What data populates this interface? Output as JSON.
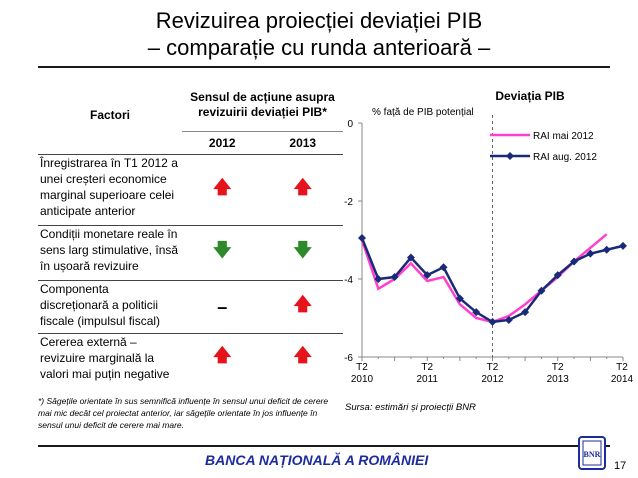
{
  "slide": {
    "title_line1": "Revizuirea proiecției deviației PIB",
    "title_line2": "– comparație cu runda anterioară –",
    "bank_name": "BANCA NAȚIONALĂ A ROMÂNIEI",
    "page_number": "17",
    "footnote": "*) Săgețile orientate în sus semnifică influențe în sensul unui deficit de cerere mai mic decât cel proiectat anterior, iar săgețile orientate în jos influențe în sensul unui deficit de cerere mai mare.",
    "source": "Sursa: estimări și proiecții BNR",
    "logo_text": "BNR"
  },
  "table": {
    "header_factor": "Factori",
    "header_sense": "Sensul de acțiune asupra revizuirii deviației PIB*",
    "year_2012": "2012",
    "year_2013": "2013",
    "rows": [
      {
        "label": "Înregistrarea în T1 2012 a unei creșteri economice marginal superioare celei anticipate anterior",
        "v2012": "up",
        "v2013": "up"
      },
      {
        "label": "Condiții monetare reale în sens larg stimulative, însă în ușoară revizuire",
        "v2012": "down",
        "v2013": "down"
      },
      {
        "label": "Componenta discreționară a politicii fiscale (impulsul fiscal)",
        "v2012": "neutral",
        "v2013": "up"
      },
      {
        "label": "Cererea externă – revizuire marginală la valori mai puțin negative",
        "v2012": "up",
        "v2013": "up"
      }
    ],
    "symbols": {
      "up": "🡅",
      "down": "🡇",
      "neutral": "–"
    },
    "colors": {
      "up": "#e5141c",
      "down": "#2d8a2a"
    }
  },
  "chart_data": {
    "type": "line",
    "title": "Deviația PIB",
    "ylabel": "% față de PIB potențial",
    "ylim": [
      -6,
      0
    ],
    "yticks": [
      0,
      -2,
      -4,
      -6
    ],
    "x_tick_labels": [
      "T2\n2010",
      "T2\n2011",
      "T2\n2012",
      "T2\n2013",
      "T2\n2014"
    ],
    "x_tick_index": [
      0,
      4,
      8,
      12,
      16
    ],
    "divider_index": 8,
    "legend_placement": "top-right",
    "series": [
      {
        "name": "RAI mai 2012",
        "color": "#ff3fd0",
        "marker": "none",
        "values": [
          -3.0,
          -4.25,
          -4.0,
          -3.6,
          -4.05,
          -3.95,
          -4.65,
          -5.0,
          -5.1,
          -4.95,
          -4.65,
          -4.3,
          -3.95,
          -3.55,
          -3.2,
          -2.85
        ]
      },
      {
        "name": "RAI aug. 2012",
        "color": "#1b2a78",
        "marker": "diamond",
        "values": [
          -2.95,
          -4.0,
          -3.95,
          -3.45,
          -3.9,
          -3.7,
          -4.5,
          -4.85,
          -5.1,
          -5.05,
          -4.85,
          -4.3,
          -3.9,
          -3.55,
          -3.35,
          -3.25,
          -3.15
        ]
      }
    ]
  }
}
